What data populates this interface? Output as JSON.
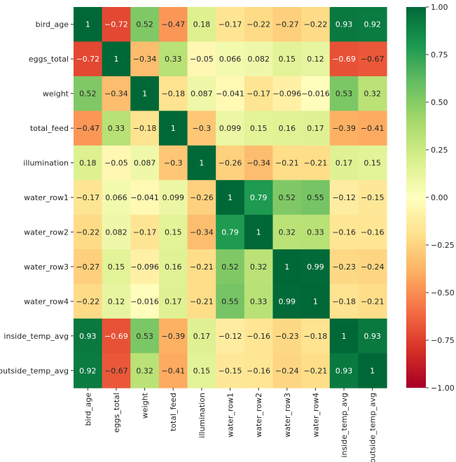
{
  "chart_data": {
    "type": "heatmap",
    "variables": [
      "bird_age",
      "eggs_total",
      "weight",
      "total_feed",
      "illumination",
      "water_row1",
      "water_row2",
      "water_row3",
      "water_row4",
      "inside_temp_avg",
      "outside_temp_avg"
    ],
    "values": [
      [
        1,
        -0.72,
        0.52,
        -0.47,
        0.18,
        -0.17,
        -0.22,
        -0.27,
        -0.22,
        0.93,
        0.92
      ],
      [
        -0.72,
        1,
        -0.34,
        0.33,
        -0.05,
        0.066,
        0.082,
        0.15,
        0.12,
        -0.69,
        -0.67
      ],
      [
        0.52,
        -0.34,
        1,
        -0.18,
        0.087,
        -0.041,
        -0.17,
        -0.096,
        -0.016,
        0.53,
        0.32
      ],
      [
        -0.47,
        0.33,
        -0.18,
        1,
        -0.3,
        0.099,
        0.15,
        0.16,
        0.17,
        -0.39,
        -0.41
      ],
      [
        0.18,
        -0.05,
        0.087,
        -0.3,
        1,
        -0.26,
        -0.34,
        -0.21,
        -0.21,
        0.17,
        0.15
      ],
      [
        -0.17,
        0.066,
        -0.041,
        0.099,
        -0.26,
        1,
        0.79,
        0.52,
        0.55,
        -0.12,
        -0.15
      ],
      [
        -0.22,
        0.082,
        -0.17,
        0.15,
        -0.34,
        0.79,
        1,
        0.32,
        0.33,
        -0.16,
        -0.16
      ],
      [
        -0.27,
        0.15,
        -0.096,
        0.16,
        -0.21,
        0.52,
        0.32,
        1,
        0.99,
        -0.23,
        -0.24
      ],
      [
        -0.22,
        0.12,
        -0.016,
        0.17,
        -0.21,
        0.55,
        0.33,
        0.99,
        1,
        -0.18,
        -0.21
      ],
      [
        0.93,
        -0.69,
        0.53,
        -0.39,
        0.17,
        -0.12,
        -0.16,
        -0.23,
        -0.18,
        1,
        0.93
      ],
      [
        0.92,
        -0.67,
        0.32,
        -0.41,
        0.15,
        -0.15,
        -0.16,
        -0.24,
        -0.21,
        0.93,
        1
      ]
    ],
    "colorscale": "RdYlGn",
    "vmin": -1,
    "vmax": 1,
    "colorbar_ticks": [
      "1.00",
      "0.75",
      "0.50",
      "0.25",
      "0.00",
      "−0.25",
      "−0.50",
      "−0.75",
      "−1.00"
    ],
    "title": "",
    "xlabel": "",
    "ylabel": ""
  }
}
